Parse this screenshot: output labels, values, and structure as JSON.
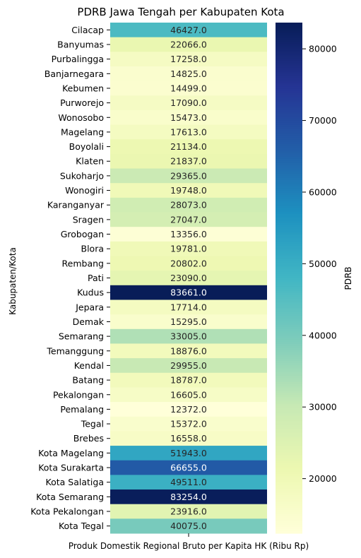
{
  "chart_data": {
    "type": "heatmap",
    "title": "PDRB Jawa Tengah per Kabupaten Kota",
    "xlabel": "Produk Domestik Regional Bruto per Kapita HK (Ribu Rp)",
    "ylabel": "Kabupaten/Kota",
    "colorbar_label": "PDRB",
    "colormap": "YlGnBu",
    "vmin": 12372,
    "vmax": 83661,
    "colorbar_ticks": [
      20000,
      30000,
      40000,
      50000,
      60000,
      70000,
      80000
    ],
    "colorbar_tick_labels": [
      "20000",
      "30000",
      "40000",
      "50000",
      "60000",
      "70000",
      "80000"
    ],
    "categories": [
      "Cilacap",
      "Banyumas",
      "Purbalingga",
      "Banjarnegara",
      "Kebumen",
      "Purworejo",
      "Wonosobo",
      "Magelang",
      "Boyolali",
      "Klaten",
      "Sukoharjo",
      "Wonogiri",
      "Karanganyar",
      "Sragen",
      "Grobogan",
      "Blora",
      "Rembang",
      "Pati",
      "Kudus",
      "Jepara",
      "Demak",
      "Semarang",
      "Temanggung",
      "Kendal",
      "Batang",
      "Pekalongan",
      "Pemalang",
      "Tegal",
      "Brebes",
      "Kota Magelang",
      "Kota Surakarta",
      "Kota Salatiga",
      "Kota Semarang",
      "Kota Pekalongan",
      "Kota Tegal"
    ],
    "values": [
      46427.0,
      22066.0,
      17258.0,
      14825.0,
      14499.0,
      17090.0,
      15473.0,
      17613.0,
      21134.0,
      21837.0,
      29365.0,
      19748.0,
      28073.0,
      27047.0,
      13356.0,
      19781.0,
      20802.0,
      23090.0,
      83661.0,
      17714.0,
      15295.0,
      33005.0,
      18876.0,
      29955.0,
      18787.0,
      16605.0,
      12372.0,
      15372.0,
      16558.0,
      51943.0,
      66655.0,
      49511.0,
      83254.0,
      23916.0,
      40075.0
    ],
    "value_labels": [
      "46427.0",
      "22066.0",
      "17258.0",
      "14825.0",
      "14499.0",
      "17090.0",
      "15473.0",
      "17613.0",
      "21134.0",
      "21837.0",
      "29365.0",
      "19748.0",
      "28073.0",
      "27047.0",
      "13356.0",
      "19781.0",
      "20802.0",
      "23090.0",
      "83661.0",
      "17714.0",
      "15295.0",
      "33005.0",
      "18876.0",
      "29955.0",
      "18787.0",
      "16605.0",
      "12372.0",
      "15372.0",
      "16558.0",
      "51943.0",
      "66655.0",
      "49511.0",
      "83254.0",
      "23916.0",
      "40075.0"
    ]
  }
}
